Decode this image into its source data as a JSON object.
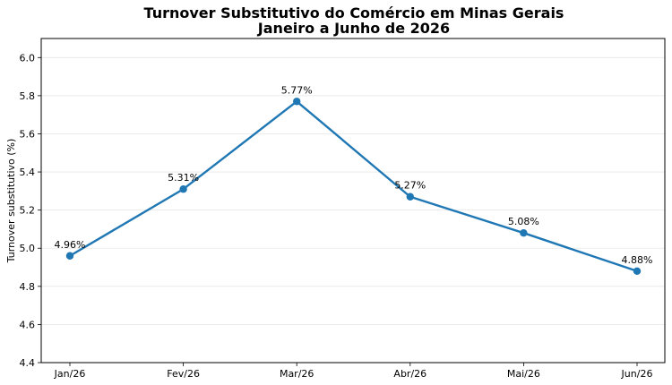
{
  "chart_data": {
    "type": "line",
    "title": "Turnover Substitutivo do Comércio em Minas Gerais",
    "subtitle": "Janeiro a Junho de 2026",
    "xlabel": "",
    "ylabel": "Turnover substitutivo (%)",
    "categories": [
      "Jan/26",
      "Fev/26",
      "Mar/26",
      "Abr/26",
      "Mai/26",
      "Jun/26"
    ],
    "series": [
      {
        "values": [
          4.96,
          5.31,
          5.77,
          5.27,
          5.08,
          4.88
        ],
        "labels": [
          "4.96%",
          "5.31%",
          "5.77%",
          "5.27%",
          "5.08%",
          "4.88%"
        ],
        "color": "#1f77b4"
      }
    ],
    "ylim": [
      4.4,
      6.1
    ],
    "yticks": [
      4.4,
      4.6,
      4.8,
      5.0,
      5.2,
      5.4,
      5.6,
      5.8,
      6.0
    ],
    "ytick_labels": [
      "4.4",
      "4.6",
      "4.8",
      "5.0",
      "5.2",
      "5.4",
      "5.6",
      "5.8",
      "6.0"
    ],
    "grid": "horizontal",
    "legend": "none"
  }
}
